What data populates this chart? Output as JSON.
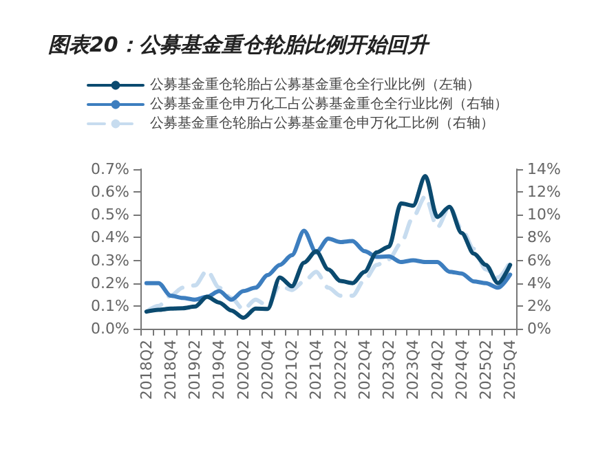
{
  "chart_data": {
    "type": "line",
    "title": "图表20：公募基金重仓轮胎比例开始回升",
    "categories": [
      "2018Q2",
      null,
      "2018Q4",
      null,
      "2019Q2",
      null,
      "2019Q4",
      null,
      "2020Q2",
      null,
      "2020Q4",
      null,
      "2021Q2",
      null,
      "2021Q4",
      null,
      "2022Q2",
      null,
      "2022Q4",
      null,
      "2023Q2",
      null,
      "2023Q4",
      null,
      "2024Q2",
      null,
      "2024Q4",
      null,
      "2025Q2",
      null,
      "2025Q4"
    ],
    "series": [
      {
        "name": "公募基金重仓轮胎占公募基金重仓全行业比例（左轴）",
        "color": "#0b4a6f",
        "line_style": "solid",
        "values": [
          0.075,
          0.083,
          0.088,
          0.09,
          0.097,
          0.14,
          0.115,
          0.08,
          0.048,
          0.088,
          0.087,
          0.225,
          0.186,
          0.29,
          0.34,
          0.26,
          0.21,
          0.2,
          0.25,
          0.335,
          0.36,
          0.55,
          0.54,
          0.67,
          0.49,
          0.535,
          0.42,
          0.33,
          0.28,
          0.2,
          0.28
        ]
      },
      {
        "name": "公募基金重仓申万化工占公募基金重仓全行业比例（右轴）",
        "color": "#3d7ebf",
        "line_style": "solid",
        "axis": "y2",
        "values": [
          4.0,
          4.0,
          2.9,
          2.7,
          2.55,
          2.8,
          3.3,
          2.55,
          3.3,
          3.6,
          4.7,
          5.6,
          6.45,
          8.6,
          6.7,
          7.9,
          7.6,
          7.7,
          6.8,
          6.3,
          6.35,
          5.85,
          6.0,
          5.85,
          5.85,
          5.0,
          4.85,
          4.15,
          4.0,
          3.6,
          4.75
        ]
      },
      {
        "name": "公募基金重仓轮胎占公募基金重仓申万化工比例（右轴）",
        "color": "#c7dcef",
        "line_style": "dashed",
        "axis": "y2",
        "values": [
          1.5,
          2.0,
          2.9,
          3.6,
          3.8,
          5.1,
          3.6,
          2.7,
          1.7,
          2.55,
          2.0,
          3.8,
          3.4,
          4.15,
          5.0,
          3.6,
          2.9,
          2.9,
          4.3,
          5.6,
          6.1,
          7.5,
          9.8,
          11.6,
          8.9,
          10.7,
          8.75,
          7.0,
          5.2,
          4.5,
          5.85
        ]
      }
    ],
    "ylim": [
      0,
      0.7
    ],
    "yticks": [
      {
        "value": 0,
        "label": "0.0%"
      },
      {
        "value": 0.1,
        "label": "0.1%"
      },
      {
        "value": 0.2,
        "label": "0.2%"
      },
      {
        "value": 0.3,
        "label": "0.3%"
      },
      {
        "value": 0.4,
        "label": "0.4%"
      },
      {
        "value": 0.5,
        "label": "0.5%"
      },
      {
        "value": 0.6,
        "label": "0.6%"
      },
      {
        "value": 0.7,
        "label": "0.7%"
      }
    ],
    "y2lim": [
      0,
      14
    ],
    "y2ticks": [
      {
        "value": 0,
        "label": "0%"
      },
      {
        "value": 2,
        "label": "2%"
      },
      {
        "value": 4,
        "label": "4%"
      },
      {
        "value": 6,
        "label": "6%"
      },
      {
        "value": 8,
        "label": "8%"
      },
      {
        "value": 10,
        "label": "10%"
      },
      {
        "value": 12,
        "label": "12%"
      },
      {
        "value": 14,
        "label": "14%"
      }
    ],
    "grid": false,
    "legend": "top",
    "marker": "none"
  }
}
